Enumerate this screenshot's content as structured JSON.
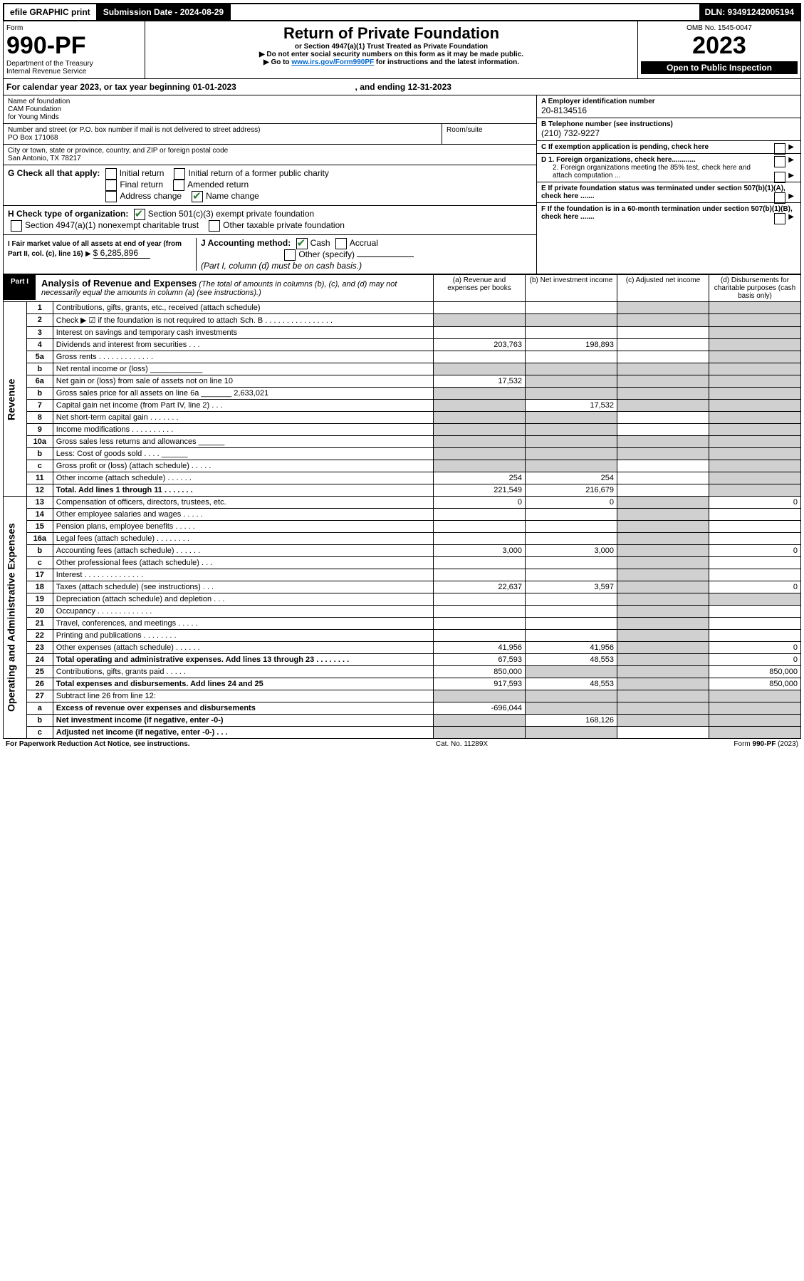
{
  "topbar": {
    "efile": "efile GRAPHIC print",
    "subdate_label": "Submission Date - 2024-08-29",
    "dln": "DLN: 93491242005194"
  },
  "header": {
    "form_label": "Form",
    "form_no": "990-PF",
    "dept": "Department of the Treasury",
    "irs": "Internal Revenue Service",
    "title": "Return of Private Foundation",
    "subtitle": "or Section 4947(a)(1) Trust Treated as Private Foundation",
    "note1": "▶ Do not enter social security numbers on this form as it may be made public.",
    "note2_pre": "▶ Go to ",
    "note2_link": "www.irs.gov/Form990PF",
    "note2_post": " for instructions and the latest information.",
    "omb": "OMB No. 1545-0047",
    "year": "2023",
    "open": "Open to Public Inspection"
  },
  "calyear": {
    "pre": "For calendar year 2023, or tax year beginning ",
    "begin": "01-01-2023",
    "mid": " , and ending ",
    "end": "12-31-2023"
  },
  "entity": {
    "name_label": "Name of foundation",
    "name1": "CAM Foundation",
    "name2": "for Young Minds",
    "addr_label": "Number and street (or P.O. box number if mail is not delivered to street address)",
    "addr": "PO Box 171068",
    "room_label": "Room/suite",
    "city_label": "City or town, state or province, country, and ZIP or foreign postal code",
    "city": "San Antonio, TX  78217",
    "ein_label": "A Employer identification number",
    "ein": "20-8134516",
    "tel_label": "B Telephone number (see instructions)",
    "tel": "(210) 732-9227",
    "c_label": "C If exemption application is pending, check here",
    "d1": "D 1. Foreign organizations, check here............",
    "d2": "2. Foreign organizations meeting the 85% test, check here and attach computation ...",
    "e": "E  If private foundation status was terminated under section 507(b)(1)(A), check here .......",
    "f": "F  If the foundation is in a 60-month termination under section 507(b)(1)(B), check here .......",
    "g_label": "G Check all that apply:",
    "g_opts": [
      "Initial return",
      "Final return",
      "Address change",
      "Initial return of a former public charity",
      "Amended return",
      "Name change"
    ],
    "h_label": "H Check type of organization:",
    "h1": "Section 501(c)(3) exempt private foundation",
    "h2": "Section 4947(a)(1) nonexempt charitable trust",
    "h3": "Other taxable private foundation",
    "i_label": "I Fair market value of all assets at end of year (from Part II, col. (c), line 16)",
    "i_val": "$  6,285,896",
    "j_label": "J Accounting method:",
    "j_cash": "Cash",
    "j_acc": "Accrual",
    "j_other": "Other (specify)",
    "j_note": "(Part I, column (d) must be on cash basis.)"
  },
  "part1": {
    "label": "Part I",
    "title": "Analysis of Revenue and Expenses",
    "title_note": " (The total of amounts in columns (b), (c), and (d) may not necessarily equal the amounts in column (a) (see instructions).)",
    "col_a": "(a) Revenue and expenses per books",
    "col_b": "(b) Net investment income",
    "col_c": "(c) Adjusted net income",
    "col_d": "(d) Disbursements for charitable purposes (cash basis only)"
  },
  "sections": {
    "rev": "Revenue",
    "oae": "Operating and Administrative Expenses"
  },
  "rows": [
    {
      "n": "1",
      "d": "Contributions, gifts, grants, etc., received (attach schedule)",
      "a": "",
      "b": "",
      "c": "shade",
      "dd": "shade"
    },
    {
      "n": "2",
      "d": "Check ▶ ☑ if the foundation is not required to attach Sch. B   . . . . . . . . . . . . . . . .",
      "a": "shade",
      "b": "shade",
      "c": "shade",
      "dd": "shade"
    },
    {
      "n": "3",
      "d": "Interest on savings and temporary cash investments",
      "a": "",
      "b": "",
      "c": "",
      "dd": "shade"
    },
    {
      "n": "4",
      "d": "Dividends and interest from securities   . . .",
      "a": "203,763",
      "b": "198,893",
      "c": "",
      "dd": "shade"
    },
    {
      "n": "5a",
      "d": "Gross rents   . . . . . . . . . . . . .",
      "a": "",
      "b": "",
      "c": "",
      "dd": "shade"
    },
    {
      "n": "b",
      "d": "Net rental income or (loss)  ____________",
      "a": "shade",
      "b": "shade",
      "c": "shade",
      "dd": "shade"
    },
    {
      "n": "6a",
      "d": "Net gain or (loss) from sale of assets not on line 10",
      "a": "17,532",
      "b": "shade",
      "c": "shade",
      "dd": "shade"
    },
    {
      "n": "b",
      "d": "Gross sales price for all assets on line 6a _______ 2,633,021",
      "a": "shade",
      "b": "shade",
      "c": "shade",
      "dd": "shade"
    },
    {
      "n": "7",
      "d": "Capital gain net income (from Part IV, line 2)   . . .",
      "a": "shade",
      "b": "17,532",
      "c": "shade",
      "dd": "shade"
    },
    {
      "n": "8",
      "d": "Net short-term capital gain   . . . . . . .",
      "a": "shade",
      "b": "shade",
      "c": "",
      "dd": "shade"
    },
    {
      "n": "9",
      "d": "Income modifications . . . . . . . . . .",
      "a": "shade",
      "b": "shade",
      "c": "",
      "dd": "shade"
    },
    {
      "n": "10a",
      "d": "Gross sales less returns and allowances  ______",
      "a": "shade",
      "b": "shade",
      "c": "shade",
      "dd": "shade"
    },
    {
      "n": "b",
      "d": "Less: Cost of goods sold   . . . .  ______",
      "a": "shade",
      "b": "shade",
      "c": "shade",
      "dd": "shade"
    },
    {
      "n": "c",
      "d": "Gross profit or (loss) (attach schedule)   . . . . .",
      "a": "shade",
      "b": "shade",
      "c": "",
      "dd": "shade"
    },
    {
      "n": "11",
      "d": "Other income (attach schedule)   . . . . . .",
      "a": "254",
      "b": "254",
      "c": "",
      "dd": "shade"
    },
    {
      "n": "12",
      "d": "Total. Add lines 1 through 11   . . . . . . .",
      "a": "221,549",
      "b": "216,679",
      "c": "",
      "dd": "shade",
      "bold": true
    },
    {
      "n": "13",
      "d": "Compensation of officers, directors, trustees, etc.",
      "a": "0",
      "b": "0",
      "c": "shade",
      "dd": "0"
    },
    {
      "n": "14",
      "d": "Other employee salaries and wages   . . . . .",
      "a": "",
      "b": "",
      "c": "shade",
      "dd": ""
    },
    {
      "n": "15",
      "d": "Pension plans, employee benefits  . . . . .",
      "a": "",
      "b": "",
      "c": "shade",
      "dd": ""
    },
    {
      "n": "16a",
      "d": "Legal fees (attach schedule) . . . . . . . .",
      "a": "",
      "b": "",
      "c": "shade",
      "dd": ""
    },
    {
      "n": "b",
      "d": "Accounting fees (attach schedule) . . . . . .",
      "a": "3,000",
      "b": "3,000",
      "c": "shade",
      "dd": "0"
    },
    {
      "n": "c",
      "d": "Other professional fees (attach schedule)   . . .",
      "a": "",
      "b": "",
      "c": "shade",
      "dd": ""
    },
    {
      "n": "17",
      "d": "Interest . . . . . . . . . . . . . .",
      "a": "",
      "b": "",
      "c": "shade",
      "dd": ""
    },
    {
      "n": "18",
      "d": "Taxes (attach schedule) (see instructions)   . . .",
      "a": "22,637",
      "b": "3,597",
      "c": "shade",
      "dd": "0"
    },
    {
      "n": "19",
      "d": "Depreciation (attach schedule) and depletion   . . .",
      "a": "",
      "b": "",
      "c": "shade",
      "dd": "shade"
    },
    {
      "n": "20",
      "d": "Occupancy . . . . . . . . . . . . .",
      "a": "",
      "b": "",
      "c": "shade",
      "dd": ""
    },
    {
      "n": "21",
      "d": "Travel, conferences, and meetings . . . . .",
      "a": "",
      "b": "",
      "c": "shade",
      "dd": ""
    },
    {
      "n": "22",
      "d": "Printing and publications . . . . . . . .",
      "a": "",
      "b": "",
      "c": "shade",
      "dd": ""
    },
    {
      "n": "23",
      "d": "Other expenses (attach schedule) . . . . . .",
      "a": "41,956",
      "b": "41,956",
      "c": "shade",
      "dd": "0"
    },
    {
      "n": "24",
      "d": "Total operating and administrative expenses. Add lines 13 through 23   . . . . . . . .",
      "a": "67,593",
      "b": "48,553",
      "c": "shade",
      "dd": "0",
      "bold": true
    },
    {
      "n": "25",
      "d": "Contributions, gifts, grants paid   . . . . .",
      "a": "850,000",
      "b": "shade",
      "c": "shade",
      "dd": "850,000"
    },
    {
      "n": "26",
      "d": "Total expenses and disbursements. Add lines 24 and 25",
      "a": "917,593",
      "b": "48,553",
      "c": "shade",
      "dd": "850,000",
      "bold": true
    },
    {
      "n": "27",
      "d": "Subtract line 26 from line 12:",
      "a": "shade",
      "b": "shade",
      "c": "shade",
      "dd": "shade"
    },
    {
      "n": "a",
      "d": "Excess of revenue over expenses and disbursements",
      "a": "-696,044",
      "b": "shade",
      "c": "shade",
      "dd": "shade",
      "bold": true
    },
    {
      "n": "b",
      "d": "Net investment income (if negative, enter -0-)",
      "a": "shade",
      "b": "168,126",
      "c": "shade",
      "dd": "shade",
      "bold": true
    },
    {
      "n": "c",
      "d": "Adjusted net income (if negative, enter -0-)   . . .",
      "a": "shade",
      "b": "shade",
      "c": "",
      "dd": "shade",
      "bold": true
    }
  ],
  "footer": {
    "left": "For Paperwork Reduction Act Notice, see instructions.",
    "mid": "Cat. No. 11289X",
    "right": "Form 990-PF (2023)"
  }
}
